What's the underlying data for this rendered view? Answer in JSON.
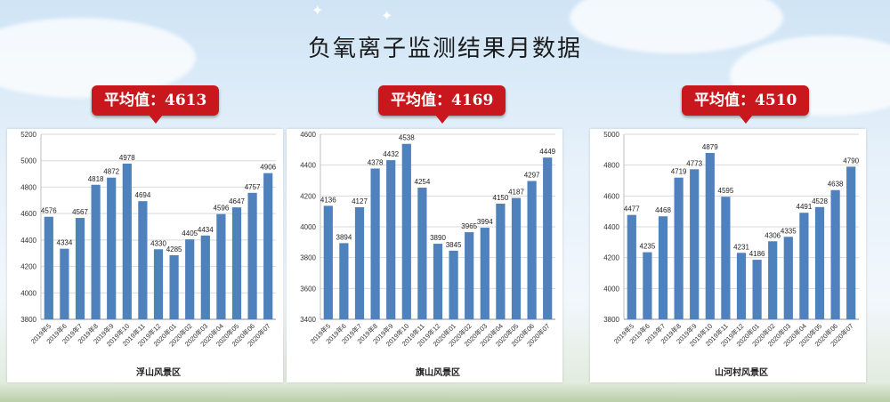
{
  "page": {
    "title": "负氧离子监测结果月数据"
  },
  "colors": {
    "bar": "#4f81bd",
    "badge": "#c8171d",
    "grid": "#d9d9d9"
  },
  "chart_data": [
    {
      "type": "bar",
      "badge": "平均值：4613",
      "xlabel": "浮山风景区",
      "categories": [
        "2019年5",
        "2019年6",
        "2019年7",
        "2019年8",
        "2019年9",
        "2019年10",
        "2019年11",
        "2019年12",
        "2020年01",
        "2020年02",
        "2020年03",
        "2020年04",
        "2020年05",
        "2020年06",
        "2020年07"
      ],
      "values": [
        4576,
        4334,
        4567,
        4818,
        4872,
        4978,
        4694,
        4330,
        4285,
        4405,
        4434,
        4596,
        4647,
        4757,
        4906
      ],
      "ylim": [
        3800,
        5200
      ],
      "yticks": [
        3800,
        4000,
        4200,
        4400,
        4600,
        4800,
        5000,
        5200
      ],
      "grid": true
    },
    {
      "type": "bar",
      "badge": "平均值：4169",
      "xlabel": "旗山风景区",
      "categories": [
        "2019年5",
        "2019年6",
        "2019年7",
        "2019年8",
        "2019年9",
        "2019年10",
        "2019年11",
        "2019年12",
        "2020年01",
        "2020年02",
        "2020年03",
        "2020年04",
        "2020年05",
        "2020年06",
        "2020年07"
      ],
      "values": [
        4136,
        3894,
        4127,
        4378,
        4432,
        4538,
        4254,
        3890,
        3845,
        3965,
        3994,
        4150,
        4187,
        4297,
        4449
      ],
      "ylim": [
        3400,
        4600
      ],
      "yticks": [
        3400,
        3600,
        3800,
        4000,
        4200,
        4400,
        4600
      ],
      "grid": true
    },
    {
      "type": "bar",
      "badge": "平均值：4510",
      "xlabel": "山河村风景区",
      "categories": [
        "2019年5",
        "2019年6",
        "2019年7",
        "2019年8",
        "2019年9",
        "2019年10",
        "2019年11",
        "2019年12",
        "2020年01",
        "2020年02",
        "2020年03",
        "2020年04",
        "2020年05",
        "2020年06",
        "2020年07"
      ],
      "values": [
        4477,
        4235,
        4468,
        4719,
        4773,
        4879,
        4595,
        4231,
        4186,
        4306,
        4335,
        4491,
        4528,
        4638,
        4790
      ],
      "ylim": [
        3800,
        5000
      ],
      "yticks": [
        3800,
        4000,
        4200,
        4400,
        4600,
        4800,
        5000
      ],
      "grid": true
    }
  ]
}
